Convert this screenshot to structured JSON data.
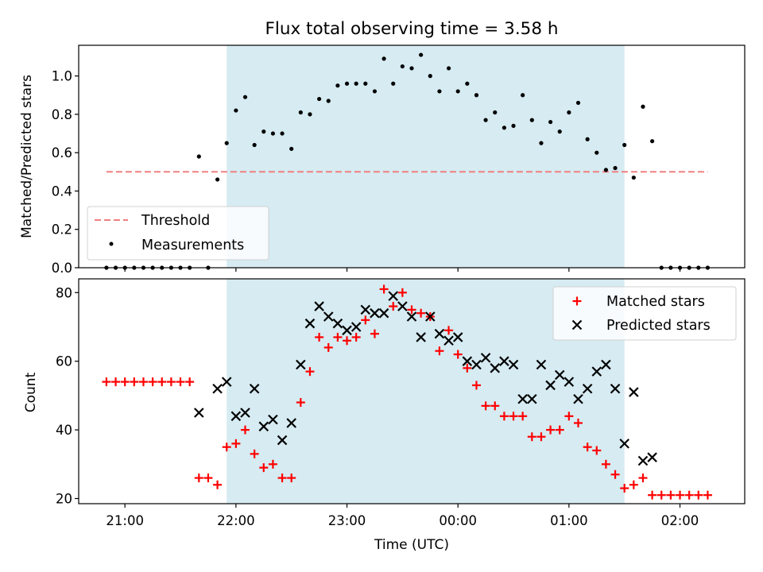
{
  "chart_data": [
    {
      "type": "scatter",
      "title": "Flux total observing time = 3.58 h",
      "xlabel": "",
      "ylabel": "Matched/Predicted stars",
      "ylim": [
        0,
        1.16
      ],
      "yticks": [
        "0.0",
        "0.2",
        "0.4",
        "0.6",
        "0.8",
        "1.0"
      ],
      "grid": false,
      "legend_position": "lower-left",
      "shaded_interval": [
        "21:55",
        "01:30"
      ],
      "threshold": {
        "name": "Threshold",
        "value": 0.5,
        "from": "20:50",
        "to": "02:15",
        "color": "#f08080"
      },
      "series": [
        {
          "name": "Measurements",
          "color": "#000000",
          "x": [
            "20:50",
            "20:55",
            "21:00",
            "21:05",
            "21:10",
            "21:15",
            "21:20",
            "21:25",
            "21:30",
            "21:35",
            "21:40",
            "21:45",
            "21:50",
            "21:55",
            "22:00",
            "22:05",
            "22:10",
            "22:15",
            "22:20",
            "22:25",
            "22:30",
            "22:35",
            "22:40",
            "22:45",
            "22:50",
            "22:55",
            "23:00",
            "23:05",
            "23:10",
            "23:15",
            "23:20",
            "23:25",
            "23:30",
            "23:35",
            "23:40",
            "23:45",
            "23:50",
            "23:55",
            "00:00",
            "00:05",
            "00:10",
            "00:15",
            "00:20",
            "00:25",
            "00:30",
            "00:35",
            "00:40",
            "00:45",
            "00:50",
            "00:55",
            "01:00",
            "01:05",
            "01:10",
            "01:15",
            "01:20",
            "01:25",
            "01:30",
            "01:35",
            "01:40",
            "01:45",
            "01:50",
            "01:55",
            "02:00",
            "02:05",
            "02:10",
            "02:15"
          ],
          "y": [
            0,
            0,
            0,
            0,
            0,
            0,
            0,
            0,
            0,
            0,
            0.58,
            0,
            0.46,
            0.65,
            0.82,
            0.89,
            0.64,
            0.71,
            0.7,
            0.7,
            0.62,
            0.81,
            0.8,
            0.88,
            0.87,
            0.95,
            0.96,
            0.96,
            0.96,
            0.92,
            1.09,
            0.96,
            1.05,
            1.04,
            1.11,
            1.0,
            0.92,
            1.04,
            0.92,
            0.96,
            0.9,
            0.77,
            0.81,
            0.73,
            0.74,
            0.9,
            0.77,
            0.65,
            0.76,
            0.71,
            0.81,
            0.86,
            0.67,
            0.6,
            0.51,
            0.52,
            0.64,
            0.47,
            0.84,
            0.66,
            0,
            0,
            0,
            0,
            0,
            0
          ]
        }
      ]
    },
    {
      "type": "scatter",
      "title": "",
      "xlabel": "Time (UTC)",
      "ylabel": "Count",
      "ylim": [
        18.5,
        84
      ],
      "yticks": [
        20,
        40,
        60,
        80
      ],
      "xlim": [
        "20:35",
        "02:35"
      ],
      "xticks": [
        "21:00",
        "22:00",
        "23:00",
        "00:00",
        "01:00",
        "02:00"
      ],
      "grid": false,
      "legend_position": "upper-right",
      "shaded_interval": [
        "21:55",
        "01:30"
      ],
      "series": [
        {
          "name": "Matched stars",
          "color": "#ff0000",
          "marker": "plus",
          "x": [
            "20:50",
            "20:55",
            "21:00",
            "21:05",
            "21:10",
            "21:15",
            "21:20",
            "21:25",
            "21:30",
            "21:35",
            "21:40",
            "21:45",
            "21:50",
            "21:55",
            "22:00",
            "22:05",
            "22:10",
            "22:15",
            "22:20",
            "22:25",
            "22:30",
            "22:35",
            "22:40",
            "22:45",
            "22:50",
            "22:55",
            "23:00",
            "23:05",
            "23:10",
            "23:15",
            "23:20",
            "23:25",
            "23:30",
            "23:35",
            "23:40",
            "23:45",
            "23:50",
            "23:55",
            "00:00",
            "00:05",
            "00:10",
            "00:15",
            "00:20",
            "00:25",
            "00:30",
            "00:35",
            "00:40",
            "00:45",
            "00:50",
            "00:55",
            "01:00",
            "01:05",
            "01:10",
            "01:15",
            "01:20",
            "01:25",
            "01:30",
            "01:35",
            "01:40",
            "01:45",
            "01:50",
            "01:55",
            "02:00",
            "02:05",
            "02:10",
            "02:15"
          ],
          "y": [
            54,
            54,
            54,
            54,
            54,
            54,
            54,
            54,
            54,
            54,
            26,
            26,
            24,
            35,
            36,
            40,
            33,
            29,
            30,
            26,
            26,
            48,
            57,
            67,
            64,
            67,
            66,
            67,
            72,
            68,
            81,
            76,
            80,
            75,
            74,
            73,
            63,
            69,
            62,
            58,
            53,
            47,
            47,
            44,
            44,
            44,
            38,
            38,
            40,
            40,
            44,
            42,
            35,
            34,
            30,
            27,
            23,
            24,
            26,
            21,
            21,
            21,
            21,
            21,
            21,
            21
          ]
        },
        {
          "name": "Predicted stars",
          "color": "#000000",
          "marker": "x",
          "x": [
            "21:40",
            "21:50",
            "21:55",
            "22:00",
            "22:05",
            "22:10",
            "22:15",
            "22:20",
            "22:25",
            "22:30",
            "22:35",
            "22:40",
            "22:45",
            "22:50",
            "22:55",
            "23:00",
            "23:05",
            "23:10",
            "23:15",
            "23:20",
            "23:25",
            "23:30",
            "23:35",
            "23:40",
            "23:45",
            "23:50",
            "23:55",
            "00:00",
            "00:05",
            "00:10",
            "00:15",
            "00:20",
            "00:25",
            "00:30",
            "00:35",
            "00:40",
            "00:45",
            "00:50",
            "00:55",
            "01:00",
            "01:05",
            "01:10",
            "01:15",
            "01:20",
            "01:25",
            "01:30",
            "01:35",
            "01:40",
            "01:45"
          ],
          "y": [
            45,
            52,
            54,
            44,
            45,
            52,
            41,
            43,
            37,
            42,
            59,
            71,
            76,
            73,
            71,
            69,
            70,
            75,
            74,
            74,
            79,
            76,
            73,
            67,
            73,
            68,
            66,
            67,
            60,
            59,
            61,
            58,
            60,
            59,
            49,
            49,
            59,
            53,
            56,
            54,
            49,
            52,
            57,
            59,
            52,
            36,
            51,
            31,
            32
          ]
        }
      ]
    }
  ]
}
